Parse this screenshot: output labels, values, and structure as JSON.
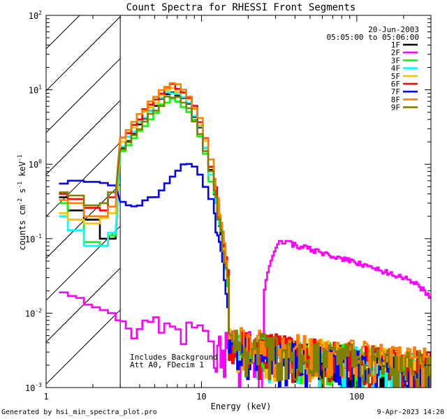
{
  "chart_data": {
    "type": "line",
    "title": "Count Spectra for RHESSI Front Segments",
    "date": "20-Jun-2003",
    "time_range": "05:05:00 to 05:06:00",
    "xlabel": "Energy (keV)",
    "ylabel_main": "counts cm",
    "ylabel_sup1": "-2",
    "ylabel_mid": " s",
    "ylabel_sup2": "-1",
    "ylabel_end": " keV",
    "ylabel_sup3": "-1",
    "xscale": "log",
    "yscale": "log",
    "xlim": [
      1,
      300
    ],
    "ylim": [
      0.001,
      100
    ],
    "x_ticks": [
      {
        "value": 1,
        "label": "1"
      },
      {
        "value": 10,
        "label": "10"
      },
      {
        "value": 100,
        "label": "100"
      }
    ],
    "y_ticks": [
      {
        "value": 100,
        "base": "10",
        "exp": "2"
      },
      {
        "value": 10,
        "base": "10",
        "exp": "1"
      },
      {
        "value": 1,
        "base": "10",
        "exp": "0"
      },
      {
        "value": 0.1,
        "base": "10",
        "exp": "-1"
      },
      {
        "value": 0.01,
        "base": "10",
        "exp": "-2"
      },
      {
        "value": 0.001,
        "base": "10",
        "exp": "-3"
      }
    ],
    "hatched_region_keV": [
      1,
      3
    ],
    "annotations": [
      "Includes Background",
      "Att A0, FDecim 1"
    ],
    "legend_position": "top-right",
    "series": [
      {
        "name": "1F",
        "color": "#000000",
        "type": "normal",
        "low": [
          0.36,
          0.24,
          0.18,
          0.1,
          0.1
        ],
        "peak": 9.0,
        "hi": 0.0025
      },
      {
        "name": "2F",
        "color": "#ff00ff",
        "type": "background",
        "low": [
          0.019,
          0.017,
          0.013,
          0.011,
          0.008
        ]
      },
      {
        "name": "3F",
        "color": "#00ff00",
        "type": "normal",
        "low": [
          0.3,
          0.18,
          0.09,
          0.08,
          0.11
        ],
        "peak": 7.5,
        "hi": 0.0025
      },
      {
        "name": "4F",
        "color": "#00ffff",
        "type": "normal",
        "low": [
          0.2,
          0.13,
          0.08,
          0.08,
          0.12
        ],
        "peak": 9.5,
        "hi": 0.0025
      },
      {
        "name": "5F",
        "color": "#ffc000",
        "type": "normal",
        "low": [
          0.22,
          0.18,
          0.16,
          0.19,
          0.22
        ],
        "peak": 10.5,
        "hi": 0.0027
      },
      {
        "name": "6F",
        "color": "#ff0000",
        "type": "normal",
        "low": [
          0.4,
          0.34,
          0.26,
          0.24,
          0.36
        ],
        "peak": 11.5,
        "hi": 0.0027
      },
      {
        "name": "7F",
        "color": "#0000ff",
        "type": "detector7",
        "low": [
          0.55,
          0.6,
          0.58,
          0.56,
          0.52
        ],
        "peak": 1.05,
        "hi": 0.0022
      },
      {
        "name": "8F",
        "color": "#ff8000",
        "type": "normal",
        "low": [
          0.33,
          0.3,
          0.2,
          0.2,
          0.27
        ],
        "peak": 12.0,
        "hi": 0.003
      },
      {
        "name": "9F",
        "color": "#808000",
        "type": "normal",
        "low": [
          0.42,
          0.38,
          0.28,
          0.3,
          0.42
        ],
        "peak": 8.0,
        "hi": 0.0026
      }
    ]
  },
  "footer": {
    "generated_by": "Generated by hsi_min_spectra_plot.pro",
    "timestamp": "9-Apr-2023 14:20"
  }
}
